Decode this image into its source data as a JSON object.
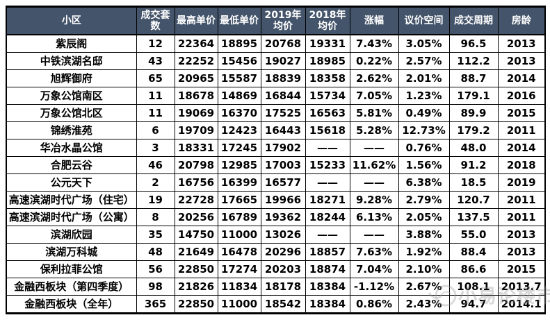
{
  "chart_data": {
    "type": "table",
    "title": "",
    "columns": [
      "小区",
      "成交套数",
      "最高单价",
      "最低单价",
      "2019年均价",
      "2018年均价",
      "涨幅",
      "议价空间",
      "成交周期",
      "房龄"
    ],
    "column_keys": [
      "community",
      "deals",
      "max-price",
      "min-price",
      "avg-2019",
      "avg-2018",
      "change",
      "bargain-space",
      "deal-cycle",
      "age"
    ],
    "rows": [
      [
        "紫辰阁",
        "12",
        "22364",
        "18895",
        "20768",
        "19331",
        "7.43%",
        "3.05%",
        "96.5",
        "2013"
      ],
      [
        "中铁滨湖名邸",
        "43",
        "22252",
        "15456",
        "19027",
        "18985",
        "0.22%",
        "2.57%",
        "112.2",
        "2013"
      ],
      [
        "旭辉御府",
        "65",
        "20965",
        "15587",
        "18839",
        "18358",
        "2.62%",
        "2.01%",
        "88.7",
        "2014"
      ],
      [
        "万象公馆南区",
        "11",
        "18678",
        "14869",
        "16844",
        "15734",
        "7.05%",
        "1.23%",
        "179.1",
        "2016"
      ],
      [
        "万象公馆北区",
        "11",
        "19069",
        "16370",
        "17525",
        "16563",
        "5.81%",
        "0.49%",
        "89.9",
        "2015"
      ],
      [
        "锦绣淮苑",
        "6",
        "19709",
        "12423",
        "16443",
        "15618",
        "5.28%",
        "12.73%",
        "179.2",
        "2011"
      ],
      [
        "华冶水晶公馆",
        "3",
        "18331",
        "17245",
        "17902",
        "——",
        "——",
        "0.76%",
        "48.0",
        "2014"
      ],
      [
        "合肥云谷",
        "46",
        "20798",
        "12985",
        "17003",
        "15233",
        "11.62%",
        "1.56%",
        "91.2",
        "2018"
      ],
      [
        "公元天下",
        "2",
        "16756",
        "16399",
        "16577",
        "——",
        "——",
        "6.38%",
        "18.5",
        "2019"
      ],
      [
        "高速滨湖时代广场（住宅）",
        "19",
        "22728",
        "17665",
        "19966",
        "18271",
        "9.28%",
        "2.79%",
        "120.7",
        "2011"
      ],
      [
        "高速滨湖时代广场（公寓）",
        "8",
        "20256",
        "16789",
        "19362",
        "18244",
        "6.13%",
        "2.05%",
        "137.5",
        "2011"
      ],
      [
        "滨湖欣园",
        "35",
        "14750",
        "11000",
        "13026",
        "——",
        "——",
        "3.88%",
        "55.0",
        "2013"
      ],
      [
        "滨湖万科城",
        "48",
        "21649",
        "16478",
        "20296",
        "18857",
        "7.63%",
        "1.92%",
        "88.4",
        "2013"
      ],
      [
        "保利拉菲公馆",
        "56",
        "22850",
        "17274",
        "20203",
        "18874",
        "7.04%",
        "2.10%",
        "86.6",
        "2015"
      ],
      [
        "金融西板块（第四季度）",
        "98",
        "21826",
        "11834",
        "18178",
        "18384",
        "-1.12%",
        "2.67%",
        "108.1",
        "2013.7"
      ],
      [
        "金融西板块（全年）",
        "365",
        "22850",
        "11000",
        "18542",
        "18384",
        "0.86%",
        "2.43%",
        "94.7",
        "2014.1"
      ]
    ]
  },
  "watermark": {
    "text": "小易论楼市"
  },
  "colors": {
    "header_bg": "#44546A",
    "header_text": "#FFFFFF",
    "border": "#000000",
    "watermark_gray": "#919191"
  }
}
